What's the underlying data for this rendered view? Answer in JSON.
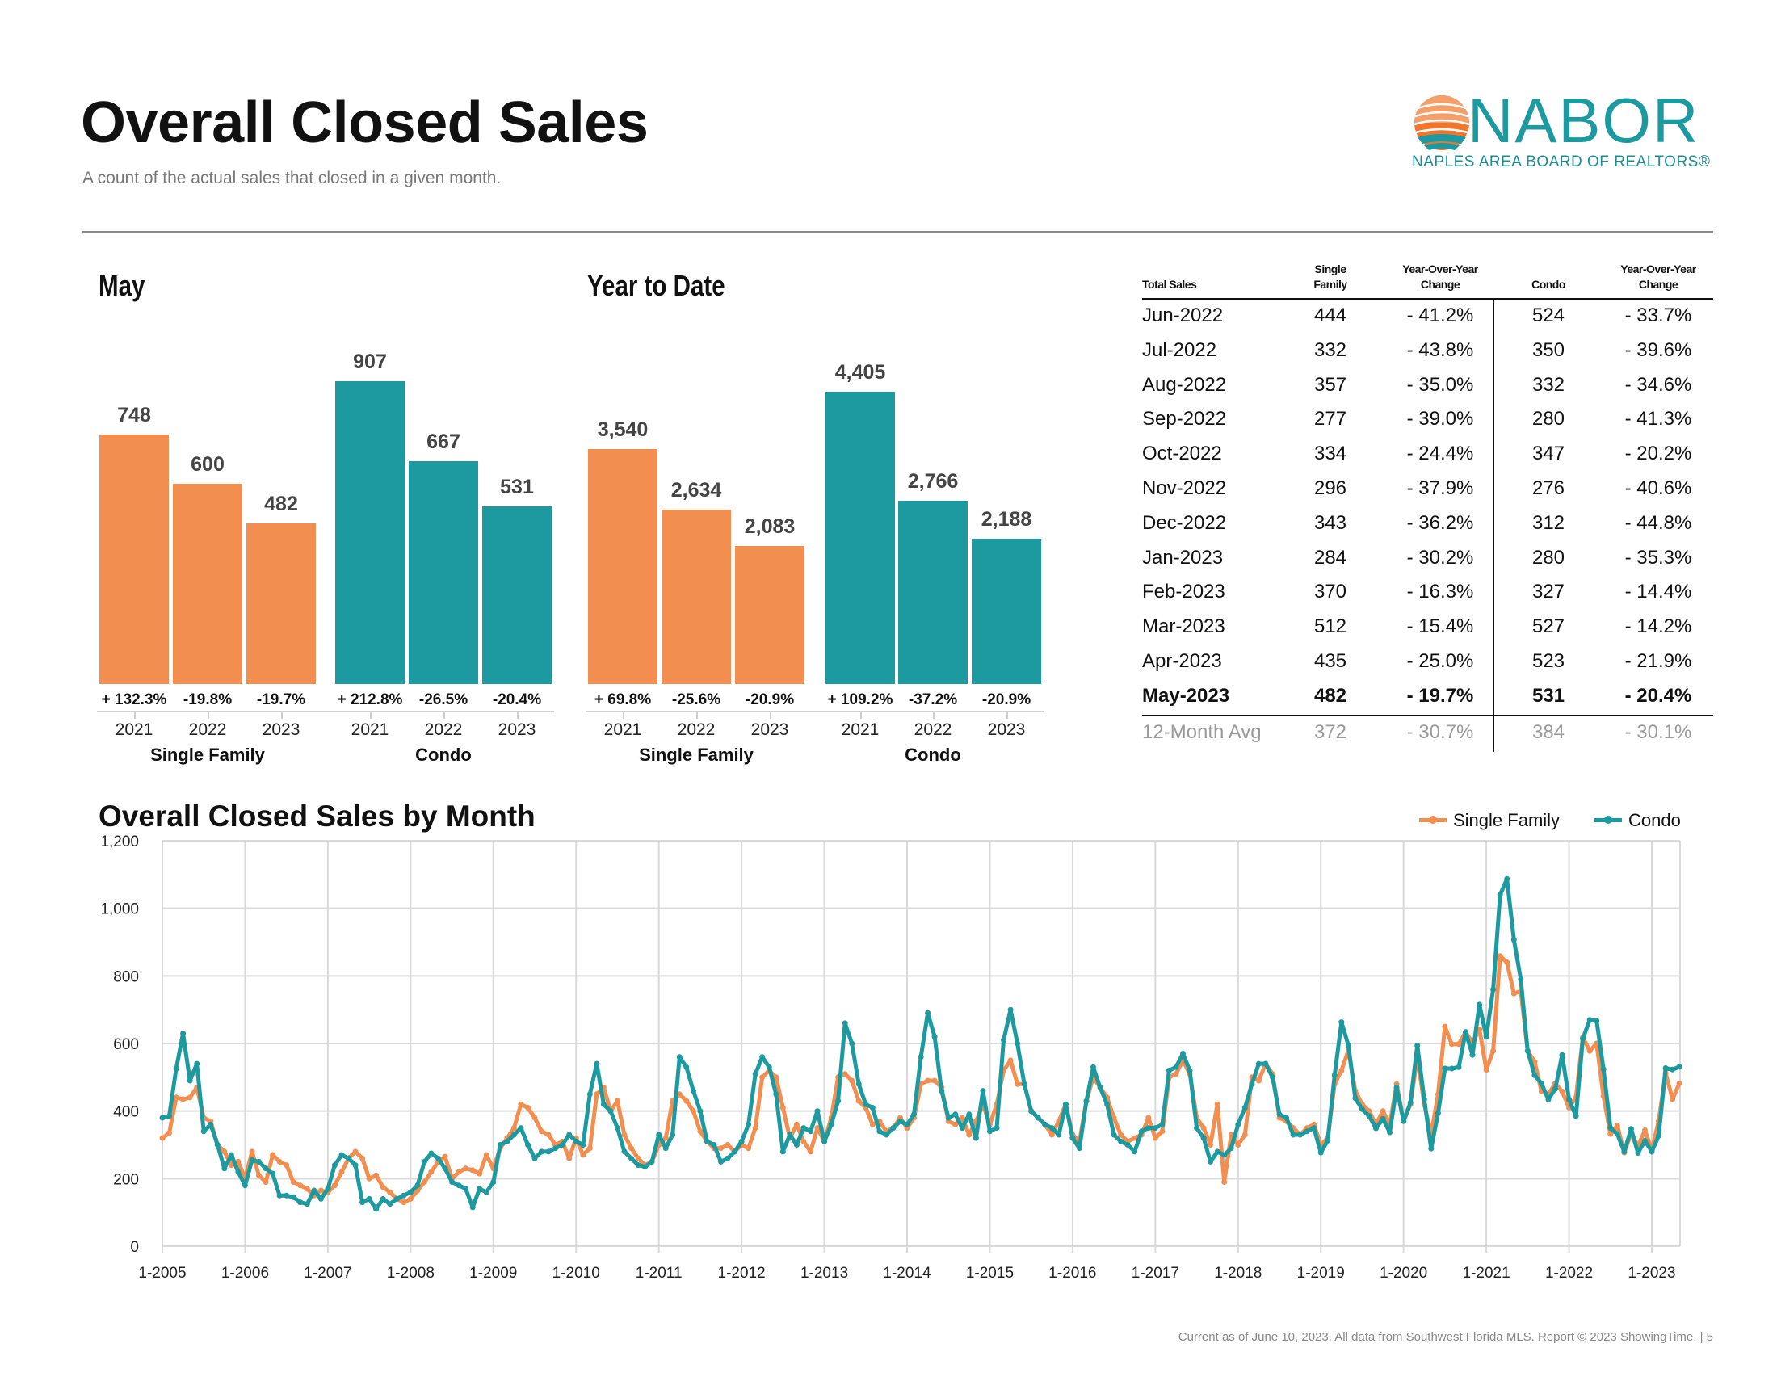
{
  "header": {
    "title": "Overall Closed Sales",
    "subtitle": "A count of the actual sales that closed in a given month.",
    "logo": {
      "name": "NABOR",
      "tagline": "NAPLES AREA BOARD OF REALTORS®",
      "icon": "shell-icon"
    }
  },
  "colors": {
    "single_family": "#F28F50",
    "condo": "#1C9AA0"
  },
  "may": {
    "title": "May",
    "groups": [
      {
        "label": "Single Family",
        "bars": [
          {
            "year": "2021",
            "value": 748,
            "label": "748",
            "change": "+ 132.3%"
          },
          {
            "year": "2022",
            "value": 600,
            "label": "600",
            "change": "-19.8%"
          },
          {
            "year": "2023",
            "value": 482,
            "label": "482",
            "change": "-19.7%"
          }
        ]
      },
      {
        "label": "Condo",
        "bars": [
          {
            "year": "2021",
            "value": 907,
            "label": "907",
            "change": "+ 212.8%"
          },
          {
            "year": "2022",
            "value": 667,
            "label": "667",
            "change": "-26.5%"
          },
          {
            "year": "2023",
            "value": 531,
            "label": "531",
            "change": "-20.4%"
          }
        ]
      }
    ]
  },
  "ytd": {
    "title": "Year to Date",
    "groups": [
      {
        "label": "Single Family",
        "bars": [
          {
            "year": "2021",
            "value": 3540,
            "label": "3,540",
            "change": "+ 69.8%"
          },
          {
            "year": "2022",
            "value": 2634,
            "label": "2,634",
            "change": "-25.6%"
          },
          {
            "year": "2023",
            "value": 2083,
            "label": "2,083",
            "change": "-20.9%"
          }
        ]
      },
      {
        "label": "Condo",
        "bars": [
          {
            "year": "2021",
            "value": 4405,
            "label": "4,405",
            "change": "+ 109.2%"
          },
          {
            "year": "2022",
            "value": 2766,
            "label": "2,766",
            "change": "-37.2%"
          },
          {
            "year": "2023",
            "value": 2188,
            "label": "2,188",
            "change": "-20.9%"
          }
        ]
      }
    ]
  },
  "table": {
    "headers": [
      "Total Sales",
      "Single\nFamily",
      "Year-Over-Year\nChange",
      "Condo",
      "Year-Over-Year\nChange"
    ],
    "rows": [
      [
        "Jun-2022",
        "444",
        "- 41.2%",
        "524",
        "- 33.7%"
      ],
      [
        "Jul-2022",
        "332",
        "- 43.8%",
        "350",
        "- 39.6%"
      ],
      [
        "Aug-2022",
        "357",
        "- 35.0%",
        "332",
        "- 34.6%"
      ],
      [
        "Sep-2022",
        "277",
        "- 39.0%",
        "280",
        "- 41.3%"
      ],
      [
        "Oct-2022",
        "334",
        "- 24.4%",
        "347",
        "- 20.2%"
      ],
      [
        "Nov-2022",
        "296",
        "- 37.9%",
        "276",
        "- 40.6%"
      ],
      [
        "Dec-2022",
        "343",
        "- 36.2%",
        "312",
        "- 44.8%"
      ],
      [
        "Jan-2023",
        "284",
        "- 30.2%",
        "280",
        "- 35.3%"
      ],
      [
        "Feb-2023",
        "370",
        "- 16.3%",
        "327",
        "- 14.4%"
      ],
      [
        "Mar-2023",
        "512",
        "- 15.4%",
        "527",
        "- 14.2%"
      ],
      [
        "Apr-2023",
        "435",
        "- 25.0%",
        "523",
        "- 21.9%"
      ],
      [
        "May-2023",
        "482",
        "- 19.7%",
        "531",
        "- 20.4%"
      ]
    ],
    "avg_row": [
      "12-Month Avg",
      "372",
      "- 30.7%",
      "384",
      "- 30.1%"
    ]
  },
  "chart_data": {
    "type": "line",
    "title": "Overall Closed Sales by Month",
    "ylim": [
      0,
      1200
    ],
    "yticks": [
      "0",
      "200",
      "400",
      "600",
      "800",
      "1,000",
      "1,200"
    ],
    "xticks": [
      "1-2005",
      "1-2006",
      "1-2007",
      "1-2008",
      "1-2009",
      "1-2010",
      "1-2011",
      "1-2012",
      "1-2013",
      "1-2014",
      "1-2015",
      "1-2016",
      "1-2017",
      "1-2018",
      "1-2019",
      "1-2020",
      "1-2021",
      "1-2022",
      "1-2023"
    ],
    "grid": true,
    "legend": "top-right",
    "series": [
      {
        "name": "Single Family",
        "color": "#F28F50",
        "values_by_year": {
          "2005": [
            320,
            335,
            440,
            435,
            440,
            470,
            380,
            370,
            300,
            280,
            240,
            250
          ],
          "2006": [
            200,
            280,
            210,
            190,
            270,
            250,
            240,
            190,
            180,
            170,
            150,
            165
          ],
          "2007": [
            160,
            180,
            220,
            260,
            280,
            260,
            200,
            210,
            175,
            160,
            140,
            130
          ],
          "2008": [
            140,
            165,
            190,
            220,
            250,
            265,
            200,
            220,
            230,
            225,
            215,
            270
          ],
          "2009": [
            230,
            290,
            320,
            350,
            420,
            410,
            380,
            340,
            330,
            300,
            310,
            260
          ],
          "2010": [
            320,
            270,
            290,
            450,
            470,
            400,
            430,
            330,
            290,
            260,
            240,
            250
          ],
          "2011": [
            300,
            320,
            430,
            450,
            430,
            400,
            340,
            310,
            290,
            290,
            300,
            280
          ],
          "2012": [
            300,
            290,
            350,
            500,
            520,
            500,
            410,
            320,
            360,
            310,
            280,
            350
          ],
          "2013": [
            310,
            380,
            500,
            510,
            490,
            430,
            410,
            360,
            370,
            340,
            350,
            380
          ],
          "2014": [
            350,
            380,
            480,
            490,
            490,
            470,
            370,
            360,
            380,
            330,
            370,
            420
          ],
          "2015": [
            360,
            420,
            520,
            550,
            480,
            480,
            400,
            380,
            360,
            330,
            370,
            420
          ],
          "2016": [
            330,
            310,
            430,
            500,
            470,
            440,
            380,
            330,
            310,
            320,
            330,
            380
          ],
          "2017": [
            320,
            340,
            500,
            510,
            550,
            510,
            380,
            350,
            300,
            420,
            190,
            330
          ],
          "2018": [
            300,
            330,
            500,
            490,
            540,
            510,
            380,
            370,
            350,
            330,
            350,
            360
          ],
          "2019": [
            300,
            320,
            480,
            520,
            580,
            460,
            420,
            400,
            360,
            400,
            360,
            480
          ],
          "2020": [
            370,
            420,
            560,
            420,
            330,
            450,
            650,
            598,
            598,
            634,
            602,
            642
          ],
          "2021": [
            522,
            578,
            859,
            840,
            748,
            755,
            578,
            546,
            458,
            450,
            482,
            458
          ],
          "2022": [
            410,
            440,
            618,
            578,
            600,
            444,
            332,
            357,
            277,
            334,
            296,
            343
          ],
          "2023": [
            284,
            370,
            512,
            435,
            482
          ]
        }
      },
      {
        "name": "Condo",
        "color": "#1C9AA0",
        "values_by_year": {
          "2005": [
            380,
            385,
            525,
            630,
            490,
            540,
            340,
            360,
            300,
            230,
            270,
            220
          ],
          "2006": [
            180,
            255,
            250,
            230,
            215,
            150,
            150,
            145,
            130,
            125,
            165,
            140
          ],
          "2007": [
            170,
            240,
            270,
            260,
            240,
            130,
            140,
            110,
            140,
            125,
            140,
            150
          ],
          "2008": [
            160,
            180,
            250,
            275,
            260,
            230,
            190,
            180,
            170,
            115,
            170,
            160
          ],
          "2009": [
            190,
            300,
            310,
            330,
            350,
            300,
            260,
            280,
            280,
            290,
            300,
            330
          ],
          "2010": [
            310,
            300,
            450,
            540,
            420,
            400,
            350,
            280,
            260,
            240,
            235,
            250
          ],
          "2011": [
            330,
            290,
            330,
            560,
            530,
            460,
            400,
            310,
            300,
            250,
            260,
            280
          ],
          "2012": [
            310,
            360,
            510,
            560,
            530,
            450,
            280,
            330,
            300,
            350,
            340,
            400
          ],
          "2013": [
            310,
            360,
            430,
            660,
            600,
            480,
            420,
            410,
            340,
            330,
            350,
            370
          ],
          "2014": [
            360,
            390,
            560,
            690,
            620,
            460,
            380,
            390,
            350,
            390,
            320,
            460
          ],
          "2015": [
            340,
            350,
            610,
            700,
            600,
            480,
            400,
            380,
            360,
            350,
            330,
            420
          ],
          "2016": [
            320,
            290,
            430,
            530,
            470,
            420,
            330,
            310,
            300,
            280,
            340,
            350
          ],
          "2017": [
            350,
            360,
            520,
            530,
            570,
            520,
            350,
            320,
            250,
            280,
            270,
            290
          ],
          "2018": [
            360,
            410,
            480,
            540,
            540,
            500,
            390,
            380,
            330,
            330,
            340,
            350
          ],
          "2019": [
            277,
            313,
            506,
            663,
            594,
            438,
            406,
            385,
            349,
            377,
            337,
            470
          ],
          "2020": [
            370,
            425,
            594,
            434,
            289,
            394,
            526,
            526,
            530,
            634,
            566,
            715
          ],
          "2021": [
            620,
            760,
            1040,
            1087,
            907,
            790,
            578,
            506,
            482,
            434,
            466,
            566
          ],
          "2022": [
            434,
            385,
            614,
            670,
            667,
            524,
            350,
            332,
            280,
            347,
            276,
            312
          ],
          "2023": [
            280,
            327,
            527,
            523,
            531
          ]
        }
      }
    ]
  },
  "footer": "Current as of June 10, 2023. All data from Southwest Florida MLS. Report © 2023 ShowingTime.  |  5"
}
